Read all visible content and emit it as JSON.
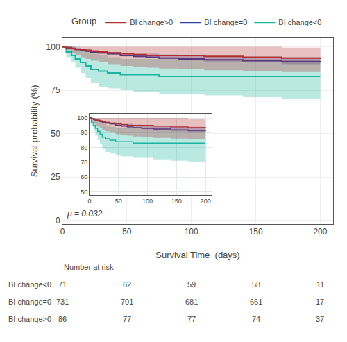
{
  "chart_data": [
    {
      "type": "step",
      "xlabel": "Survival Time  (days)",
      "ylabel": "Survival probability (%)",
      "xlim": [
        0,
        210
      ],
      "ylim": [
        -2,
        105
      ],
      "xticks": [
        0,
        50,
        100,
        150,
        200
      ],
      "yticks": [
        0,
        25,
        50,
        75,
        100
      ],
      "grid": true,
      "legend": "top",
      "legend_title": "Group",
      "annotations": [
        "p = 0.032"
      ],
      "series": [
        {
          "name": "BI change<0",
          "color": "#1ab5a0",
          "x": [
            0,
            3,
            7,
            10,
            14,
            18,
            22,
            28,
            35,
            45,
            55,
            65,
            75,
            90,
            110,
            140,
            170,
            200
          ],
          "values": [
            100,
            97,
            95,
            93,
            91,
            89,
            87,
            86,
            85,
            84,
            84,
            84,
            83,
            83,
            83,
            83,
            83,
            83
          ],
          "lower": [
            100,
            94,
            91,
            88,
            85,
            82,
            79,
            77,
            76,
            75,
            74,
            74,
            73,
            73,
            72,
            71,
            70,
            70
          ],
          "upper": [
            100,
            100,
            100,
            99,
            98,
            97,
            96,
            95,
            94,
            93,
            93,
            93,
            93,
            92,
            92,
            92,
            92,
            93
          ]
        },
        {
          "name": "BI change=0",
          "color": "#3040a0",
          "x": [
            0,
            3,
            7,
            10,
            14,
            18,
            22,
            28,
            35,
            45,
            55,
            65,
            75,
            90,
            110,
            140,
            170,
            200
          ],
          "values": [
            100,
            99.5,
            99,
            98.5,
            98,
            97.5,
            97,
            96.5,
            96,
            95,
            94.5,
            94,
            93.5,
            93,
            92.5,
            92,
            91.5,
            91
          ],
          "lower": [
            100,
            99,
            98.5,
            98,
            97.5,
            97,
            96.5,
            96,
            95.5,
            94.5,
            94,
            93.5,
            93,
            92,
            91.5,
            91,
            90,
            89
          ],
          "upper": [
            100,
            100,
            100,
            99.5,
            99,
            98.5,
            98,
            97.5,
            97,
            96.5,
            96,
            96,
            95.5,
            95,
            94.5,
            94,
            94,
            94
          ]
        },
        {
          "name": "BI change>0",
          "color": "#b03030",
          "x": [
            0,
            3,
            7,
            10,
            14,
            18,
            22,
            28,
            35,
            45,
            55,
            65,
            75,
            90,
            110,
            140,
            170,
            200
          ],
          "values": [
            100,
            99.5,
            99,
            98.5,
            98.5,
            98,
            97.5,
            97,
            96.5,
            96,
            95.5,
            95,
            95,
            95,
            94.5,
            94,
            93.5,
            93
          ],
          "lower": [
            100,
            98,
            96.5,
            95,
            94,
            93,
            92,
            91,
            90,
            89,
            88.5,
            88,
            87.5,
            87,
            86.5,
            86,
            85.5,
            85
          ],
          "upper": [
            100,
            100,
            100,
            100,
            100,
            100,
            100,
            100,
            100,
            100,
            100,
            100,
            100,
            100,
            100,
            100,
            99.5,
            100
          ]
        }
      ],
      "risk_table": {
        "title": "Number at risk",
        "labels": [
          "BI change<0",
          "BI change=0",
          "BI change>0"
        ],
        "timepoints": [
          0,
          50,
          100,
          150,
          200
        ],
        "values": [
          [
            71,
            62,
            59,
            58,
            11
          ],
          [
            731,
            701,
            681,
            661,
            17
          ],
          [
            86,
            77,
            77,
            74,
            37
          ]
        ]
      }
    },
    {
      "type": "step",
      "xlim": [
        0,
        210
      ],
      "ylim": [
        48,
        103
      ],
      "xticks": [
        0,
        50,
        100,
        150,
        200
      ],
      "yticks": [
        50,
        60,
        70,
        80,
        90,
        100
      ],
      "grid": true,
      "series": [
        {
          "color": "#1ab5a0",
          "x": [
            0,
            3,
            7,
            10,
            14,
            18,
            22,
            28,
            35,
            45,
            55,
            65,
            75,
            90,
            110,
            140,
            170,
            200
          ],
          "values": [
            100,
            97,
            95,
            93,
            91,
            89,
            87,
            86,
            85,
            84,
            84,
            84,
            83,
            83,
            83,
            83,
            83,
            83
          ],
          "lower": [
            100,
            94,
            91,
            88,
            85,
            82,
            79,
            77,
            76,
            75,
            74,
            74,
            73,
            73,
            72,
            71,
            70,
            70
          ],
          "upper": [
            100,
            100,
            100,
            99,
            98,
            97,
            96,
            95,
            94,
            93,
            93,
            93,
            93,
            92,
            92,
            92,
            92,
            93
          ]
        },
        {
          "color": "#3040a0",
          "x": [
            0,
            3,
            7,
            10,
            14,
            18,
            22,
            28,
            35,
            45,
            55,
            65,
            75,
            90,
            110,
            140,
            170,
            200
          ],
          "values": [
            100,
            99.5,
            99,
            98.5,
            98,
            97.5,
            97,
            96.5,
            96,
            95,
            94.5,
            94,
            93.5,
            93,
            92.5,
            92,
            91.5,
            91
          ],
          "lower": [
            100,
            99,
            98.5,
            98,
            97.5,
            97,
            96.5,
            96,
            95.5,
            94.5,
            94,
            93.5,
            93,
            92,
            91.5,
            91,
            90,
            89
          ],
          "upper": [
            100,
            100,
            100,
            99.5,
            99,
            98.5,
            98,
            97.5,
            97,
            96.5,
            96,
            96,
            95.5,
            95,
            94.5,
            94,
            94,
            94
          ]
        },
        {
          "color": "#b03030",
          "x": [
            0,
            3,
            7,
            10,
            14,
            18,
            22,
            28,
            35,
            45,
            55,
            65,
            75,
            90,
            110,
            140,
            170,
            200
          ],
          "values": [
            100,
            99.5,
            99,
            98.5,
            98.5,
            98,
            97.5,
            97,
            96.5,
            96,
            95.5,
            95,
            95,
            95,
            94.5,
            94,
            93.5,
            93
          ],
          "lower": [
            100,
            98,
            96.5,
            95,
            94,
            93,
            92,
            91,
            90,
            89,
            88.5,
            88,
            87.5,
            87,
            86.5,
            86,
            85.5,
            85
          ],
          "upper": [
            100,
            100,
            100,
            100,
            100,
            100,
            100,
            100,
            100,
            100,
            100,
            100,
            100,
            100,
            100,
            100,
            99.5,
            100
          ]
        }
      ]
    }
  ]
}
